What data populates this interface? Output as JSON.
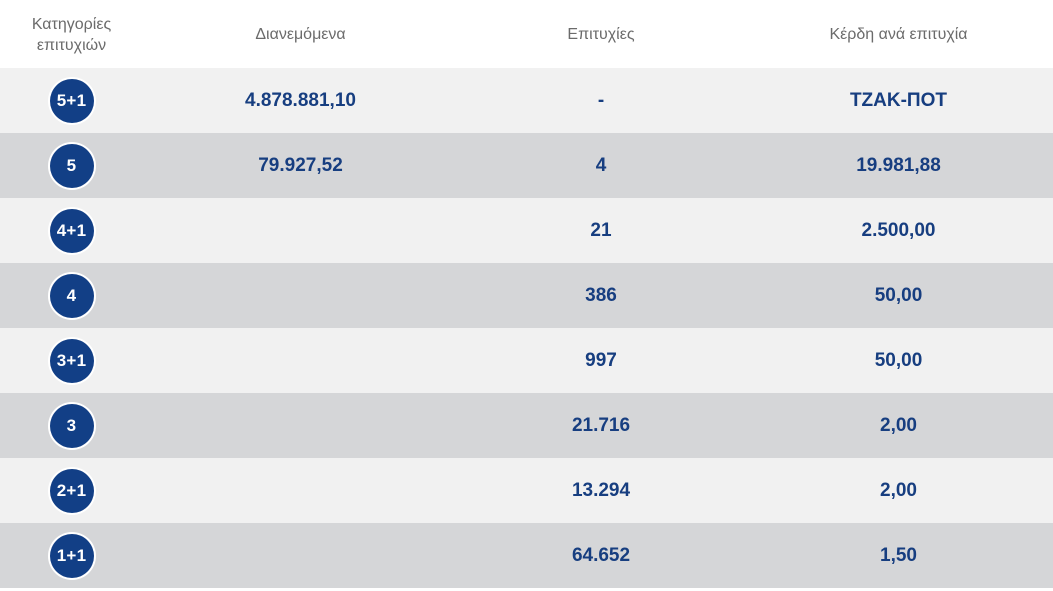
{
  "headers": {
    "category": "Κατηγορίες\nεπιτυχιών",
    "distributed": "Διανεμόμενα",
    "winners": "Επιτυχίες",
    "prize": "Κέρδη ανά επιτυχία"
  },
  "rows": [
    {
      "category": "5+1",
      "distributed": "4.878.881,10",
      "winners": "-",
      "prize": "ΤΖΑΚ-ΠΟΤ"
    },
    {
      "category": "5",
      "distributed": "79.927,52",
      "winners": "4",
      "prize": "19.981,88"
    },
    {
      "category": "4+1",
      "distributed": "",
      "winners": "21",
      "prize": "2.500,00"
    },
    {
      "category": "4",
      "distributed": "",
      "winners": "386",
      "prize": "50,00"
    },
    {
      "category": "3+1",
      "distributed": "",
      "winners": "997",
      "prize": "50,00"
    },
    {
      "category": "3",
      "distributed": "",
      "winners": "21.716",
      "prize": "2,00"
    },
    {
      "category": "2+1",
      "distributed": "",
      "winners": "13.294",
      "prize": "2,00"
    },
    {
      "category": "1+1",
      "distributed": "",
      "winners": "64.652",
      "prize": "1,50"
    }
  ],
  "colors": {
    "badge": "#123f86",
    "value_text": "#173e80",
    "header_text": "#6b6b6b",
    "row_light": "#f1f1f1",
    "row_dark": "#d5d6d8"
  }
}
